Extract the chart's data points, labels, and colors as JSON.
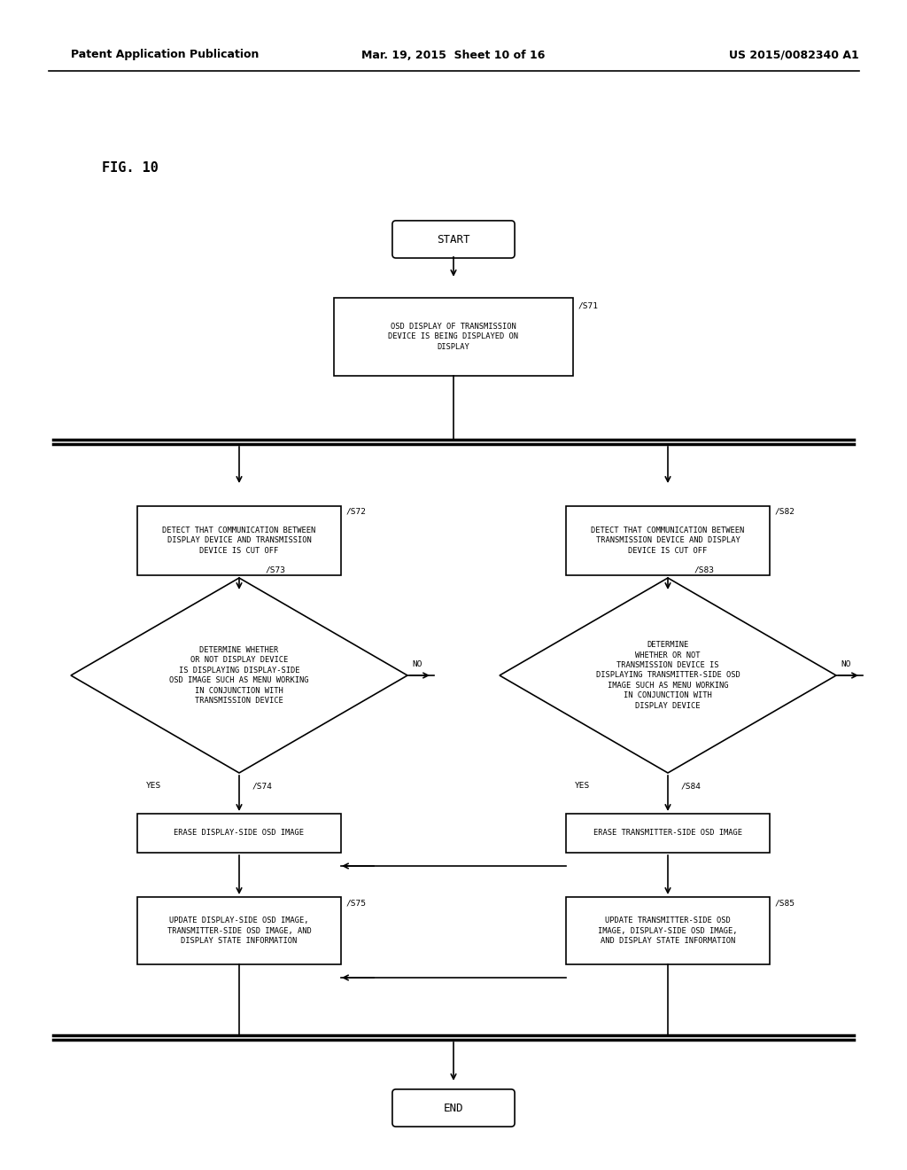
{
  "header_left": "Patent Application Publication",
  "header_mid": "Mar. 19, 2015  Sheet 10 of 16",
  "header_right": "US 2015/0082340 A1",
  "fig_label": "FIG. 10",
  "background_color": "#ffffff",
  "line_color": "#000000",
  "text_color": "#000000",
  "font_size_header": 9.0,
  "font_size_fig": 11,
  "font_size_node": 6.3,
  "font_size_tag": 6.8
}
